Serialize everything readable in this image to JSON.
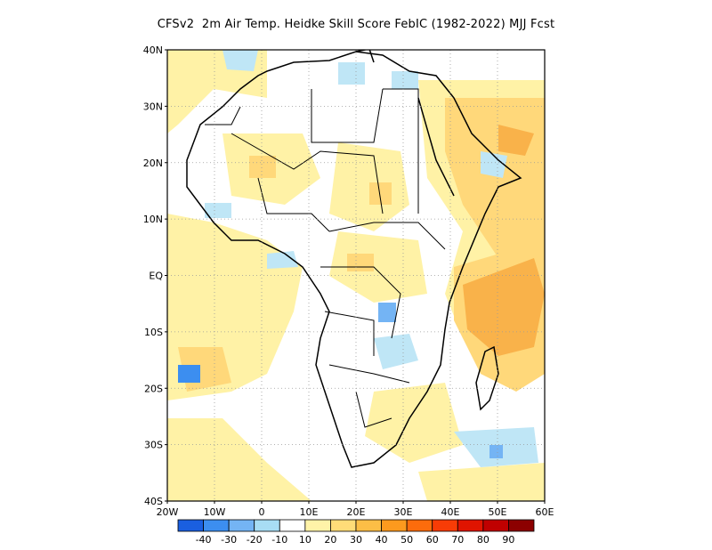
{
  "title": "CFSv2  2m Air Temp. Heidke Skill Score FebIC (1982-2022) MJJ Fcst",
  "map": {
    "lat_labels": [
      "40N",
      "30N",
      "20N",
      "10N",
      "EQ",
      "10S",
      "20S",
      "30S",
      "40S"
    ],
    "lon_labels": [
      "20W",
      "10W",
      "0",
      "10E",
      "20E",
      "30E",
      "40E",
      "50E",
      "60E"
    ],
    "lat_range": [
      -40,
      40
    ],
    "lon_range": [
      -20,
      60
    ],
    "grid": "dotted"
  },
  "colorbar": {
    "labels": [
      "-40",
      "-30",
      "-20",
      "-10",
      "10",
      "20",
      "30",
      "40",
      "50",
      "60",
      "70",
      "80",
      "90"
    ],
    "colors": [
      "#1a5fe0",
      "#3c8ef0",
      "#74b4f4",
      "#a8ddf4",
      "#ffffff",
      "#fff3a8",
      "#ffdc78",
      "#fcbe46",
      "#fc9a1e",
      "#fc6c0c",
      "#f83c06",
      "#e01400",
      "#c00000",
      "#8c0000"
    ]
  },
  "legend_colors": {
    "neg_light": "#bfe6f6",
    "pos_light": "#fff2a6",
    "pos_mid": "#ffd87a",
    "pos_strong": "#f9b24a"
  }
}
